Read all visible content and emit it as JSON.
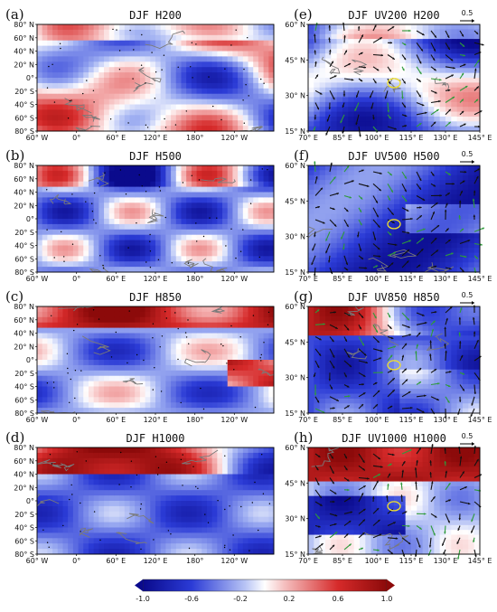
{
  "chart_data": [
    {
      "panel": "(a)",
      "title": "DJF  H200",
      "type": "heatmap",
      "y_ticks": [
        "80° N",
        "60° N",
        "40° N",
        "20° N",
        "0°",
        "20° S",
        "40° S",
        "60° S",
        "80° S"
      ],
      "x_ticks": [
        "60° W",
        "0°",
        "60° E",
        "120° E",
        "180°",
        "120° W"
      ]
    },
    {
      "panel": "(b)",
      "title": "DJF  H500",
      "type": "heatmap",
      "y_ticks": [
        "80° N",
        "60° N",
        "40° N",
        "20° N",
        "0°",
        "20° S",
        "40° S",
        "60° S",
        "80° S"
      ],
      "x_ticks": [
        "60° W",
        "0°",
        "60° E",
        "120° E",
        "180°",
        "120° W"
      ]
    },
    {
      "panel": "(c)",
      "title": "DJF  H850",
      "type": "heatmap",
      "y_ticks": [
        "80° N",
        "60° N",
        "40° N",
        "20° N",
        "0°",
        "20° S",
        "40° S",
        "60° S",
        "80° S"
      ],
      "x_ticks": [
        "60° W",
        "0°",
        "60° E",
        "120° E",
        "180°",
        "120° W"
      ]
    },
    {
      "panel": "(d)",
      "title": "DJF  H1000",
      "type": "heatmap",
      "y_ticks": [
        "80° N",
        "60° N",
        "40° N",
        "20° N",
        "0°",
        "20° S",
        "40° S",
        "60° S",
        "80° S"
      ],
      "x_ticks": [
        "60° W",
        "0°",
        "60° E",
        "120° E",
        "180°",
        "120° W"
      ]
    },
    {
      "panel": "(e)",
      "title": "DJF  UV200  H200",
      "type": "heatmap",
      "y_ticks": [
        "60° N",
        "45° N",
        "30° N",
        "15° N"
      ],
      "x_ticks": [
        "70° E",
        "85° E",
        "100° E",
        "115° E",
        "130° E",
        "145° E"
      ],
      "reference_vector": "0.5"
    },
    {
      "panel": "(f)",
      "title": "DJF  UV500  H500",
      "type": "heatmap",
      "y_ticks": [
        "60° N",
        "45° N",
        "30° N",
        "15° N"
      ],
      "x_ticks": [
        "70° E",
        "85° E",
        "100° E",
        "115° E",
        "130° E",
        "145° E"
      ],
      "reference_vector": "0.5"
    },
    {
      "panel": "(g)",
      "title": "DJF  UV850  H850",
      "type": "heatmap",
      "y_ticks": [
        "60° N",
        "45° N",
        "30° N",
        "15° N"
      ],
      "x_ticks": [
        "70° E",
        "85° E",
        "100° E",
        "115° E",
        "130° E",
        "145° E"
      ],
      "reference_vector": "0.5"
    },
    {
      "panel": "(h)",
      "title": "DJF  UV1000  H1000",
      "type": "heatmap",
      "y_ticks": [
        "60° N",
        "45° N",
        "30° N",
        "15° N"
      ],
      "x_ticks": [
        "70° E",
        "85° E",
        "100° E",
        "115° E",
        "130° E",
        "145° E"
      ],
      "reference_vector": "0.5"
    }
  ],
  "colorbar": {
    "ticks": [
      "-1.0",
      "-0.6",
      "-0.2",
      "0.2",
      "0.6",
      "1.0"
    ],
    "colors": [
      "#0a0a8c",
      "#2b3bd6",
      "#8fa4f0",
      "#ffffff",
      "#f2a0a0",
      "#d62a2a",
      "#8c0a0a"
    ]
  }
}
